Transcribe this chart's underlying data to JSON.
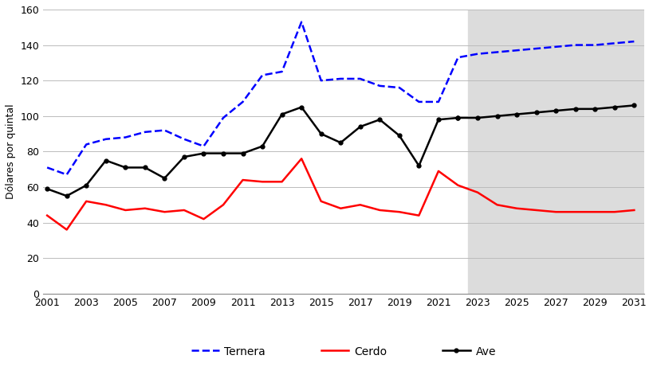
{
  "ternera_years": [
    2001,
    2002,
    2003,
    2004,
    2005,
    2006,
    2007,
    2008,
    2009,
    2010,
    2011,
    2012,
    2013,
    2014,
    2015,
    2016,
    2017,
    2018,
    2019,
    2020,
    2021,
    2022,
    2023,
    2024,
    2025,
    2026,
    2027,
    2028,
    2029,
    2030,
    2031
  ],
  "ternera_values": [
    71,
    67,
    84,
    87,
    88,
    91,
    92,
    87,
    83,
    99,
    108,
    123,
    125,
    153,
    120,
    121,
    121,
    117,
    116,
    108,
    108,
    133,
    135,
    136,
    137,
    138,
    139,
    140,
    140,
    141,
    142
  ],
  "cerdo_years": [
    2001,
    2002,
    2003,
    2004,
    2005,
    2006,
    2007,
    2008,
    2009,
    2010,
    2011,
    2012,
    2013,
    2014,
    2015,
    2016,
    2017,
    2018,
    2019,
    2020,
    2021,
    2022,
    2023,
    2024,
    2025,
    2026,
    2027,
    2028,
    2029,
    2030,
    2031
  ],
  "cerdo_values": [
    44,
    36,
    52,
    50,
    47,
    48,
    46,
    47,
    42,
    50,
    64,
    63,
    63,
    76,
    52,
    48,
    50,
    47,
    46,
    44,
    69,
    61,
    57,
    50,
    48,
    47,
    46,
    46,
    46,
    46,
    47
  ],
  "ave_years_hist": [
    2001,
    2002,
    2003,
    2004,
    2005,
    2006,
    2007,
    2008,
    2009,
    2010,
    2011,
    2012,
    2013,
    2014,
    2015,
    2016,
    2017,
    2018,
    2019,
    2020,
    2021,
    2022
  ],
  "ave_values_hist": [
    59,
    55,
    61,
    75,
    71,
    71,
    65,
    77,
    79,
    79,
    79,
    83,
    101,
    105,
    90,
    85,
    94,
    98,
    89,
    72,
    98,
    99
  ],
  "ave_years_fore": [
    2022,
    2023,
    2024,
    2025,
    2026,
    2027,
    2028,
    2029,
    2030,
    2031
  ],
  "ave_values_fore": [
    99,
    99,
    100,
    101,
    102,
    103,
    104,
    104,
    105,
    106
  ],
  "shade_start": 2022.5,
  "shade_end": 2031.5,
  "ylim": [
    0,
    160
  ],
  "yticks": [
    0,
    20,
    40,
    60,
    80,
    100,
    120,
    140,
    160
  ],
  "xticks": [
    2001,
    2003,
    2005,
    2007,
    2009,
    2011,
    2013,
    2015,
    2017,
    2019,
    2021,
    2023,
    2025,
    2027,
    2029,
    2031
  ],
  "xlim_left": 2000.8,
  "xlim_right": 2031.5,
  "ylabel": "Dólares por quintal",
  "ternera_color": "#0000FF",
  "cerdo_color": "#FF0000",
  "ave_color": "#000000",
  "shade_color": "#DCDCDC",
  "legend_ternera": "Ternera",
  "legend_cerdo": "Cerdo",
  "legend_ave": "Ave",
  "bg_color": "#FFFFFF",
  "grid_color": "#BBBBBB"
}
